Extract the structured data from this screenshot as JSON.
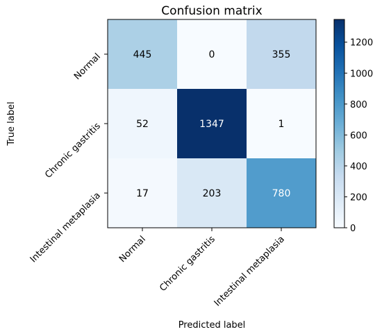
{
  "chart_data": {
    "type": "heatmap",
    "title": "Confusion matrix",
    "xlabel": "Predicted label",
    "ylabel": "True label",
    "x_categories": [
      "Normal",
      "Chronic gastritis",
      "Intestinal metaplasia"
    ],
    "y_categories": [
      "Normal",
      "Chronic gastritis",
      "Intestinal metaplasia"
    ],
    "values": [
      [
        445,
        0,
        355
      ],
      [
        52,
        1347,
        1
      ],
      [
        17,
        203,
        780
      ]
    ],
    "colormap": "Blues",
    "color_range": [
      0,
      1347
    ],
    "colorbar_ticks": [
      "0",
      "200",
      "400",
      "600",
      "800",
      "1000",
      "1200"
    ],
    "colorbar_tick_values": [
      0,
      200,
      400,
      600,
      800,
      1000,
      1200
    ],
    "cell_text_colors": {
      "light": "#ffffff",
      "dark": "#000000"
    },
    "grid": false
  }
}
